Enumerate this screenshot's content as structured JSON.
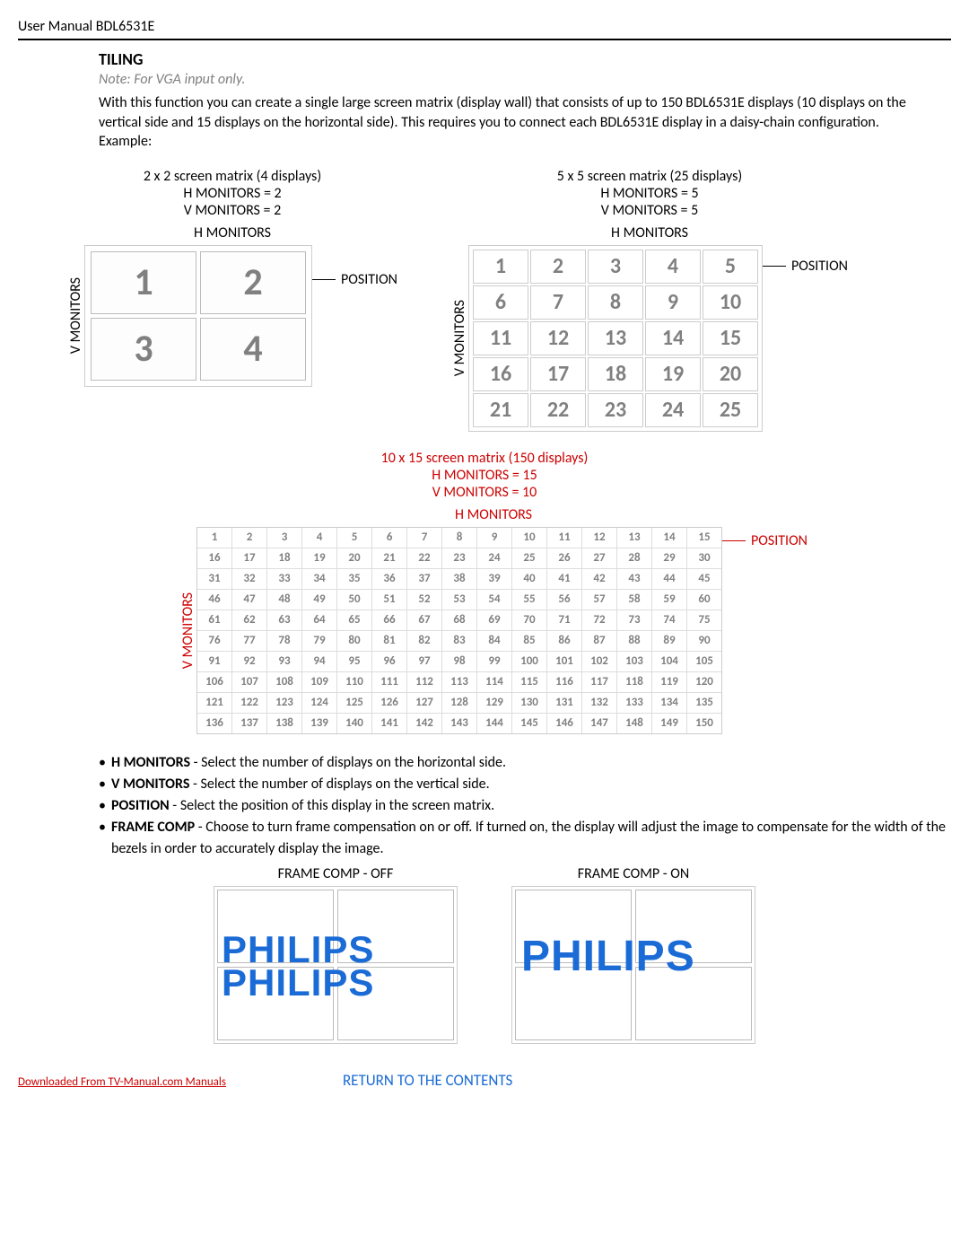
{
  "header": "User Manual BDL6531E",
  "section_title": "TILING",
  "note": "Note: For VGA input only.",
  "intro": "With this function you can create a single large screen matrix (display wall) that consists of up to 150 BDL6531E displays (10 displays on the vertical side and 15 displays on the horizontal side). This requires you to connect each BDL6531E display in a daisy-chain configuration. Example:",
  "matrix_2x2": {
    "title": "2 x 2 screen matrix (4 displays)",
    "h_line": "H MONITORS = 2",
    "v_line": "V MONITORS = 2",
    "h_label": "H MONITORS",
    "v_label": "V MONITORS",
    "position": "POSITION",
    "cells": [
      "1",
      "2",
      "3",
      "4"
    ]
  },
  "matrix_5x5": {
    "title": "5 x 5 screen matrix (25 displays)",
    "h_line": "H MONITORS = 5",
    "v_line": "V MONITORS = 5",
    "h_label": "H MONITORS",
    "v_label": "V MONITORS",
    "position": "POSITION"
  },
  "matrix_150": {
    "title": "10 x 15 screen matrix (150 displays)",
    "h_line": "H MONITORS = 15",
    "v_line": "V MONITORS = 10",
    "h_label": "H MONITORS",
    "v_label": "V MONITORS",
    "position": "POSITION",
    "color": "#cc0000"
  },
  "bullets": {
    "b1_name": "H MONITORS",
    "b1_text": " - Select the number of displays on the horizontal side.",
    "b2_name": "V MONITORS",
    "b2_text": " - Select the number of displays on the vertical side.",
    "b3_name": "POSITION",
    "b3_text": " - Select the position of this display in the screen matrix.",
    "b4_name": "FRAME COMP",
    "b4_text": " - Choose to turn frame compensation on or off. If turned on, the display will adjust the image to compensate for the width of the bezels in order to accurately display the image."
  },
  "framecomp": {
    "off_title": "FRAME COMP - OFF",
    "on_title": "FRAME COMP - ON",
    "logo": "PHILIPS",
    "logo_color": "#1a6bd6"
  },
  "footer": {
    "download": "Downloaded From TV-Manual.com Manuals",
    "return": "RETURN TO THE CONTENTS",
    "return_color": "#1a6bd6"
  }
}
